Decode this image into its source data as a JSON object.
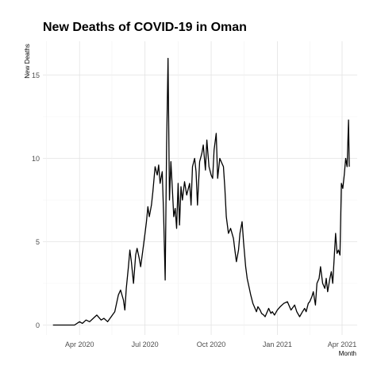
{
  "chart_data": {
    "type": "line",
    "title": "New Deaths of COVID-19 in Oman",
    "xlabel": "Month",
    "ylabel": "New Deaths",
    "x_ticks": [
      "Apr 2020",
      "Jul 2020",
      "Oct 2020",
      "Jan 2021",
      "Apr 2021"
    ],
    "y_ticks": [
      "0",
      "5",
      "10",
      "15"
    ],
    "ylim": [
      0,
      16
    ],
    "grid": true,
    "legend": "none",
    "line_color": "#000000",
    "series": [
      {
        "x": [
          "2020-02-24",
          "2020-03-10",
          "2020-03-20",
          "2020-03-25",
          "2020-04-01",
          "2020-04-05",
          "2020-04-10",
          "2020-04-15",
          "2020-04-20",
          "2020-04-25",
          "2020-05-01",
          "2020-05-05",
          "2020-05-10",
          "2020-05-15",
          "2020-05-20",
          "2020-05-22",
          "2020-05-25",
          "2020-05-28",
          "2020-06-01",
          "2020-06-03",
          "2020-06-05",
          "2020-06-08",
          "2020-06-10",
          "2020-06-12",
          "2020-06-15",
          "2020-06-18",
          "2020-06-20",
          "2020-06-23",
          "2020-06-25",
          "2020-06-28",
          "2020-07-01",
          "2020-07-03",
          "2020-07-05",
          "2020-07-07",
          "2020-07-10",
          "2020-07-12",
          "2020-07-15",
          "2020-07-18",
          "2020-07-20",
          "2020-07-22",
          "2020-07-25",
          "2020-07-27",
          "2020-07-29",
          "2020-07-31",
          "2020-08-02",
          "2020-08-04",
          "2020-08-06",
          "2020-08-08",
          "2020-08-10",
          "2020-08-12",
          "2020-08-14",
          "2020-08-16",
          "2020-08-18",
          "2020-08-20",
          "2020-08-22",
          "2020-08-25",
          "2020-08-28",
          "2020-09-01",
          "2020-09-03",
          "2020-09-05",
          "2020-09-08",
          "2020-09-10",
          "2020-09-12",
          "2020-09-15",
          "2020-09-18",
          "2020-09-20",
          "2020-09-23",
          "2020-09-25",
          "2020-09-28",
          "2020-10-01",
          "2020-10-03",
          "2020-10-05",
          "2020-10-08",
          "2020-10-10",
          "2020-10-13",
          "2020-10-15",
          "2020-10-18",
          "2020-10-20",
          "2020-10-22",
          "2020-10-25",
          "2020-10-28",
          "2020-11-01",
          "2020-11-03",
          "2020-11-05",
          "2020-11-08",
          "2020-11-10",
          "2020-11-13",
          "2020-11-15",
          "2020-11-18",
          "2020-11-20",
          "2020-11-23",
          "2020-11-25",
          "2020-11-28",
          "2020-12-01",
          "2020-12-03",
          "2020-12-05",
          "2020-12-08",
          "2020-12-10",
          "2020-12-13",
          "2020-12-15",
          "2020-12-18",
          "2020-12-20",
          "2020-12-23",
          "2020-12-25",
          "2020-12-28",
          "2021-01-01",
          "2021-01-05",
          "2021-01-10",
          "2021-01-15",
          "2021-01-20",
          "2021-01-25",
          "2021-01-28",
          "2021-02-01",
          "2021-02-05",
          "2021-02-08",
          "2021-02-10",
          "2021-02-13",
          "2021-02-15",
          "2021-02-18",
          "2021-02-20",
          "2021-02-23",
          "2021-02-25",
          "2021-02-28",
          "2021-03-02",
          "2021-03-05",
          "2021-03-08",
          "2021-03-10",
          "2021-03-12",
          "2021-03-15",
          "2021-03-17",
          "2021-03-19",
          "2021-03-21",
          "2021-03-23",
          "2021-03-25",
          "2021-03-27",
          "2021-03-29",
          "2021-03-31",
          "2021-04-02",
          "2021-04-04",
          "2021-04-06",
          "2021-04-08",
          "2021-04-10",
          "2021-04-11"
        ],
        "y": [
          0,
          0,
          0,
          0,
          0.2,
          0.1,
          0.3,
          0.2,
          0.4,
          0.6,
          0.3,
          0.4,
          0.2,
          0.5,
          0.8,
          1.2,
          1.8,
          2.1,
          1.5,
          0.9,
          2.2,
          3.5,
          4.5,
          3.8,
          2.5,
          4.2,
          4.6,
          4.0,
          3.5,
          4.5,
          5.5,
          6.2,
          7.1,
          6.5,
          7.2,
          8.0,
          9.5,
          9.0,
          9.6,
          8.5,
          9.2,
          6.5,
          2.7,
          10.8,
          16.0,
          7.5,
          9.8,
          8.2,
          6.5,
          7.0,
          5.8,
          8.5,
          6.0,
          8.3,
          7.5,
          8.6,
          7.8,
          8.5,
          7.2,
          9.5,
          10.0,
          9.2,
          7.2,
          9.8,
          10.3,
          10.8,
          9.3,
          11.1,
          9.5,
          9.0,
          8.8,
          10.5,
          11.5,
          8.8,
          10.0,
          9.8,
          9.5,
          8.2,
          6.5,
          5.5,
          5.8,
          5.2,
          4.5,
          3.8,
          4.5,
          5.5,
          6.2,
          5.0,
          3.5,
          2.8,
          2.2,
          1.8,
          1.3,
          1.0,
          0.8,
          1.1,
          0.9,
          0.7,
          0.6,
          0.5,
          0.8,
          1.0,
          0.7,
          0.8,
          0.6,
          0.9,
          1.1,
          1.3,
          1.4,
          0.9,
          1.2,
          0.8,
          0.5,
          0.8,
          1.0,
          0.8,
          1.3,
          1.4,
          1.7,
          2.0,
          1.2,
          2.5,
          2.8,
          3.5,
          2.5,
          2.2,
          2.8,
          2.0,
          2.8,
          3.2,
          2.5,
          4.0,
          5.5,
          4.3,
          4.5,
          4.2,
          8.5,
          8.2,
          9.0,
          10.0,
          9.5,
          12.3,
          9.5
        ]
      }
    ]
  }
}
